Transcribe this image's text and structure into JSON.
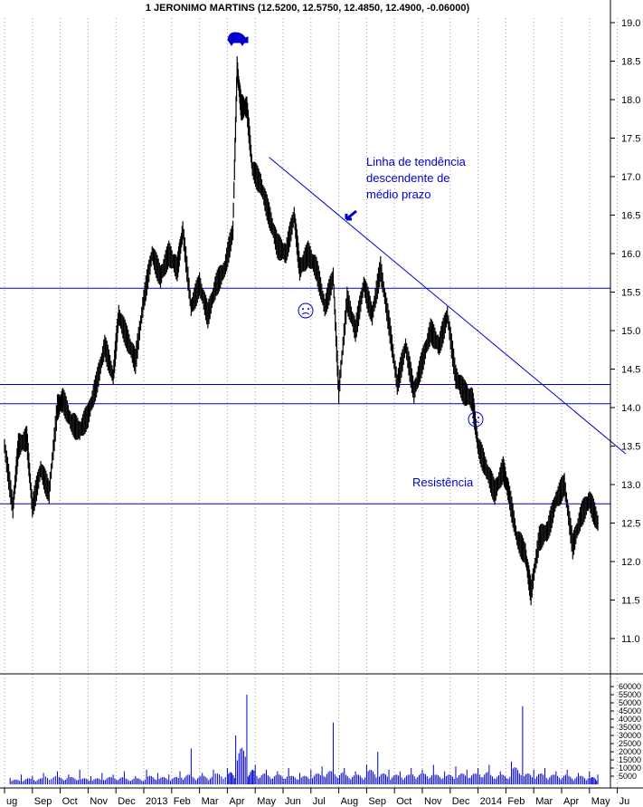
{
  "chart_data": {
    "type": "bar",
    "title": "1 JERONIMO MARTINS (12.5200, 12.5750, 12.4850, 12.4900, -0.06000)",
    "months": [
      "ug",
      "Sep",
      "Oct",
      "Nov",
      "Dec",
      "2013",
      "Feb",
      "Mar",
      "Apr",
      "May",
      "Jun",
      "Jul",
      "Aug",
      "Sep",
      "Oct",
      "Nov",
      "Dec",
      "2014",
      "Feb",
      "Mar",
      "Apr",
      "May",
      "Ju"
    ],
    "price_axis": {
      "min": 10.5,
      "max": 19.0,
      "ticks": [
        19.0,
        18.5,
        18.0,
        17.5,
        17.0,
        16.5,
        16.0,
        15.5,
        15.0,
        14.5,
        14.0,
        13.5,
        13.0,
        12.5,
        12.0,
        11.5,
        11.0
      ]
    },
    "volume_axis": {
      "ticks": [
        60000,
        55000,
        50000,
        45000,
        40000,
        35000,
        30000,
        25000,
        20000,
        15000,
        10000,
        5000
      ]
    },
    "price_series": [
      {
        "m": 0.0,
        "v": 13.5
      },
      {
        "m": 0.3,
        "v": 12.7
      },
      {
        "m": 0.5,
        "v": 13.5
      },
      {
        "m": 0.8,
        "v": 13.6
      },
      {
        "m": 1.0,
        "v": 12.7
      },
      {
        "m": 1.3,
        "v": 13.2
      },
      {
        "m": 1.6,
        "v": 12.9
      },
      {
        "m": 1.9,
        "v": 14.0
      },
      {
        "m": 2.1,
        "v": 14.1
      },
      {
        "m": 2.4,
        "v": 13.8
      },
      {
        "m": 2.7,
        "v": 13.7
      },
      {
        "m": 3.0,
        "v": 13.9
      },
      {
        "m": 3.3,
        "v": 14.3
      },
      {
        "m": 3.6,
        "v": 14.8
      },
      {
        "m": 3.9,
        "v": 14.4
      },
      {
        "m": 4.1,
        "v": 15.2
      },
      {
        "m": 4.4,
        "v": 14.9
      },
      {
        "m": 4.7,
        "v": 14.6
      },
      {
        "m": 5.0,
        "v": 15.4
      },
      {
        "m": 5.3,
        "v": 16.0
      },
      {
        "m": 5.6,
        "v": 15.7
      },
      {
        "m": 5.9,
        "v": 16.0
      },
      {
        "m": 6.2,
        "v": 15.8
      },
      {
        "m": 6.4,
        "v": 16.3
      },
      {
        "m": 6.7,
        "v": 15.3
      },
      {
        "m": 7.0,
        "v": 15.6
      },
      {
        "m": 7.3,
        "v": 15.2
      },
      {
        "m": 7.6,
        "v": 15.6
      },
      {
        "m": 7.9,
        "v": 15.8
      },
      {
        "m": 8.2,
        "v": 16.3
      },
      {
        "m": 8.35,
        "v": 18.4
      },
      {
        "m": 8.5,
        "v": 17.9
      },
      {
        "m": 8.7,
        "v": 17.9
      },
      {
        "m": 8.9,
        "v": 17.1
      },
      {
        "m": 9.2,
        "v": 16.9
      },
      {
        "m": 9.5,
        "v": 16.5
      },
      {
        "m": 9.8,
        "v": 16.1
      },
      {
        "m": 10.1,
        "v": 16.0
      },
      {
        "m": 10.4,
        "v": 16.5
      },
      {
        "m": 10.6,
        "v": 15.8
      },
      {
        "m": 10.9,
        "v": 16.0
      },
      {
        "m": 11.2,
        "v": 15.8
      },
      {
        "m": 11.5,
        "v": 15.3
      },
      {
        "m": 11.8,
        "v": 15.7
      },
      {
        "m": 12.0,
        "v": 14.2
      },
      {
        "m": 12.3,
        "v": 15.4
      },
      {
        "m": 12.6,
        "v": 15.0
      },
      {
        "m": 12.9,
        "v": 15.6
      },
      {
        "m": 13.2,
        "v": 15.2
      },
      {
        "m": 13.5,
        "v": 15.8
      },
      {
        "m": 13.8,
        "v": 15.1
      },
      {
        "m": 14.1,
        "v": 14.3
      },
      {
        "m": 14.4,
        "v": 14.8
      },
      {
        "m": 14.7,
        "v": 14.2
      },
      {
        "m": 15.0,
        "v": 14.6
      },
      {
        "m": 15.3,
        "v": 15.0
      },
      {
        "m": 15.6,
        "v": 14.8
      },
      {
        "m": 15.9,
        "v": 15.2
      },
      {
        "m": 16.2,
        "v": 14.4
      },
      {
        "m": 16.5,
        "v": 14.2
      },
      {
        "m": 16.8,
        "v": 14.1
      },
      {
        "m": 17.0,
        "v": 13.5
      },
      {
        "m": 17.3,
        "v": 13.2
      },
      {
        "m": 17.6,
        "v": 12.9
      },
      {
        "m": 17.9,
        "v": 13.2
      },
      {
        "m": 18.1,
        "v": 12.9
      },
      {
        "m": 18.4,
        "v": 12.3
      },
      {
        "m": 18.7,
        "v": 12.1
      },
      {
        "m": 18.9,
        "v": 11.6
      },
      {
        "m": 19.2,
        "v": 12.3
      },
      {
        "m": 19.5,
        "v": 12.4
      },
      {
        "m": 19.8,
        "v": 12.8
      },
      {
        "m": 20.1,
        "v": 13.0
      },
      {
        "m": 20.4,
        "v": 12.2
      },
      {
        "m": 20.7,
        "v": 12.6
      },
      {
        "m": 21.0,
        "v": 12.8
      },
      {
        "m": 21.3,
        "v": 12.5
      }
    ],
    "volume_series": [
      {
        "m": 0.2,
        "v": 4000
      },
      {
        "m": 0.6,
        "v": 6000
      },
      {
        "m": 1.0,
        "v": 5000
      },
      {
        "m": 1.4,
        "v": 7000
      },
      {
        "m": 1.9,
        "v": 8000
      },
      {
        "m": 2.3,
        "v": 6000
      },
      {
        "m": 2.7,
        "v": 9000
      },
      {
        "m": 3.1,
        "v": 5000
      },
      {
        "m": 3.5,
        "v": 7000
      },
      {
        "m": 3.9,
        "v": 6000
      },
      {
        "m": 4.3,
        "v": 8000
      },
      {
        "m": 4.7,
        "v": 5000
      },
      {
        "m": 5.1,
        "v": 9000
      },
      {
        "m": 5.5,
        "v": 7000
      },
      {
        "m": 5.9,
        "v": 6000
      },
      {
        "m": 6.3,
        "v": 8000
      },
      {
        "m": 6.7,
        "v": 22000
      },
      {
        "m": 7.1,
        "v": 7000
      },
      {
        "m": 7.5,
        "v": 9000
      },
      {
        "m": 8.0,
        "v": 10000
      },
      {
        "m": 8.3,
        "v": 30000
      },
      {
        "m": 8.7,
        "v": 55000
      },
      {
        "m": 9.0,
        "v": 12000
      },
      {
        "m": 9.4,
        "v": 9000
      },
      {
        "m": 9.8,
        "v": 8000
      },
      {
        "m": 10.2,
        "v": 10000
      },
      {
        "m": 10.6,
        "v": 7000
      },
      {
        "m": 11.0,
        "v": 9000
      },
      {
        "m": 11.4,
        "v": 11000
      },
      {
        "m": 11.8,
        "v": 38000
      },
      {
        "m": 12.2,
        "v": 10000
      },
      {
        "m": 12.6,
        "v": 8000
      },
      {
        "m": 13.0,
        "v": 12000
      },
      {
        "m": 13.4,
        "v": 20000
      },
      {
        "m": 13.8,
        "v": 9000
      },
      {
        "m": 14.2,
        "v": 8000
      },
      {
        "m": 14.6,
        "v": 10000
      },
      {
        "m": 15.0,
        "v": 9000
      },
      {
        "m": 15.4,
        "v": 12000
      },
      {
        "m": 15.8,
        "v": 8000
      },
      {
        "m": 16.2,
        "v": 11000
      },
      {
        "m": 16.6,
        "v": 9000
      },
      {
        "m": 17.0,
        "v": 10000
      },
      {
        "m": 17.4,
        "v": 12000
      },
      {
        "m": 17.8,
        "v": 8000
      },
      {
        "m": 18.2,
        "v": 14000
      },
      {
        "m": 18.6,
        "v": 48000
      },
      {
        "m": 19.0,
        "v": 9000
      },
      {
        "m": 19.4,
        "v": 10000
      },
      {
        "m": 19.8,
        "v": 8000
      },
      {
        "m": 20.2,
        "v": 9000
      },
      {
        "m": 20.6,
        "v": 7000
      },
      {
        "m": 21.0,
        "v": 8000
      },
      {
        "m": 21.3,
        "v": 6000
      }
    ],
    "horizontal_lines": [
      15.55,
      14.3,
      14.05,
      12.75
    ],
    "trendline": {
      "from": {
        "m": 9.5,
        "v": 17.25
      },
      "to": {
        "m": 22.3,
        "v": 13.4
      }
    },
    "annotations": {
      "trend_label": [
        "Linha de tendência",
        "descendente de",
        "médio prazo"
      ],
      "resistance_label": "Resistência"
    },
    "colors": {
      "price": "#000000",
      "lines": "#0000cc",
      "volume": "#0000cc",
      "grid": "#999999"
    }
  }
}
